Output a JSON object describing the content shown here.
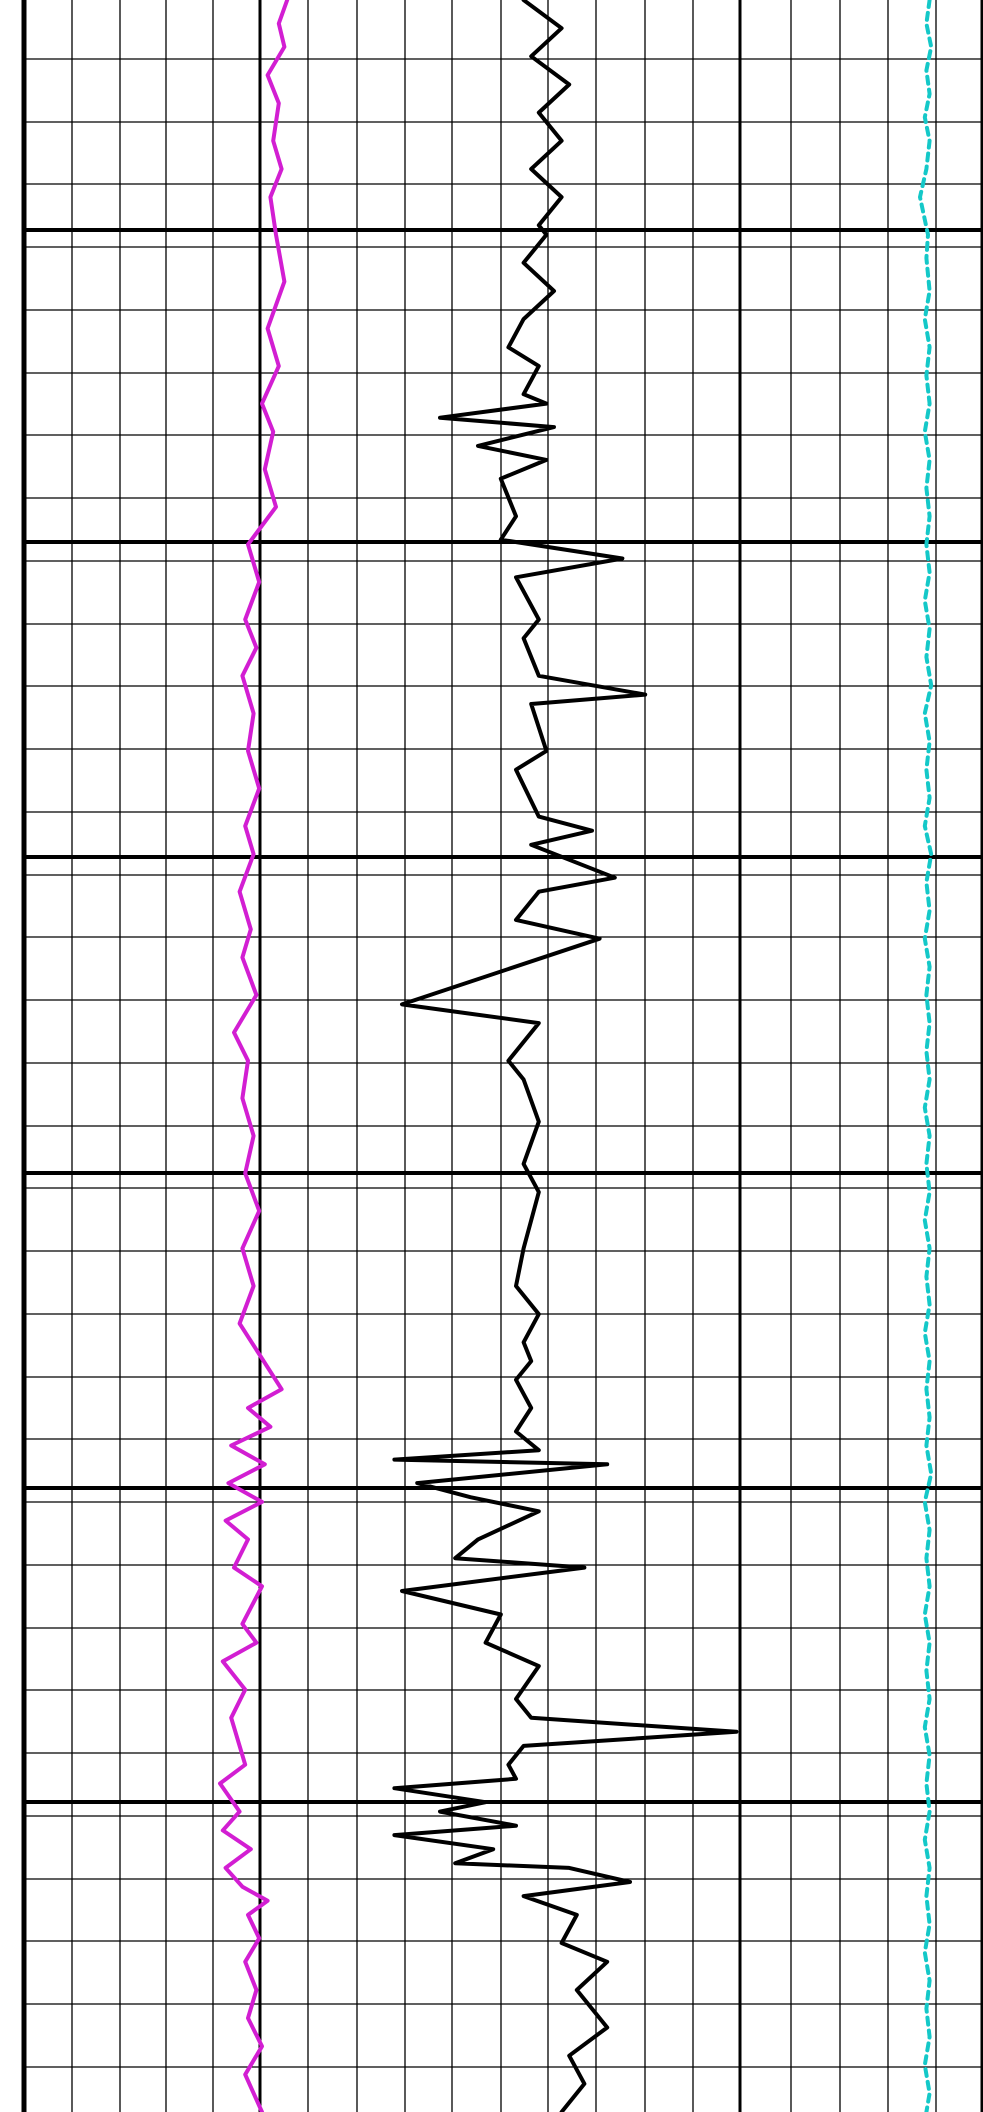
{
  "chart_data": {
    "type": "line",
    "title": "",
    "xlabel": "",
    "ylabel": "",
    "grid": true,
    "colors": {
      "background": "#ffffff",
      "grid": "#000000",
      "magenta": "#d21ed2",
      "black": "#000000",
      "cyan": "#14c8c8"
    },
    "series": [
      {
        "color": "magenta",
        "dashed": false,
        "x_range": [
          0,
          5
        ],
        "y_range": [
          0,
          45
        ],
        "points": [
          [
            4.9,
            0
          ],
          [
            4.6,
            0.5
          ],
          [
            4.8,
            1
          ],
          [
            4.2,
            1.6
          ],
          [
            4.6,
            2.2
          ],
          [
            4.4,
            3
          ],
          [
            4.7,
            3.6
          ],
          [
            4.3,
            4.2
          ],
          [
            4.5,
            5
          ],
          [
            4.8,
            6
          ],
          [
            4.2,
            7
          ],
          [
            4.6,
            7.8
          ],
          [
            4.0,
            8.6
          ],
          [
            4.4,
            9.2
          ],
          [
            4.1,
            10
          ],
          [
            4.5,
            10.8
          ],
          [
            3.5,
            11.6
          ],
          [
            3.9,
            12.4
          ],
          [
            3.4,
            13.2
          ],
          [
            3.8,
            13.8
          ],
          [
            3.3,
            14.4
          ],
          [
            3.7,
            15.2
          ],
          [
            3.5,
            16
          ],
          [
            3.9,
            16.8
          ],
          [
            3.4,
            17.6
          ],
          [
            3.7,
            18.2
          ],
          [
            3.2,
            19
          ],
          [
            3.6,
            19.8
          ],
          [
            3.3,
            20.4
          ],
          [
            3.8,
            21.2
          ],
          [
            3.0,
            22
          ],
          [
            3.5,
            22.6
          ],
          [
            3.3,
            23.4
          ],
          [
            3.7,
            24.2
          ],
          [
            3.4,
            25
          ],
          [
            3.9,
            25.8
          ],
          [
            3.3,
            26.6
          ],
          [
            3.7,
            27.4
          ],
          [
            3.2,
            28.2
          ],
          [
            4.7,
            29.6
          ],
          [
            3.5,
            30
          ],
          [
            4.3,
            30.4
          ],
          [
            2.9,
            30.8
          ],
          [
            4.1,
            31.2
          ],
          [
            2.8,
            31.6
          ],
          [
            4.0,
            32
          ],
          [
            2.7,
            32.4
          ],
          [
            3.5,
            32.8
          ],
          [
            3.0,
            33.4
          ],
          [
            4.0,
            33.8
          ],
          [
            3.3,
            34.6
          ],
          [
            3.8,
            35
          ],
          [
            2.6,
            35.4
          ],
          [
            3.4,
            36
          ],
          [
            2.9,
            36.6
          ],
          [
            3.4,
            37.6
          ],
          [
            2.5,
            38
          ],
          [
            3.2,
            38.6
          ],
          [
            2.6,
            39
          ],
          [
            3.6,
            39.4
          ],
          [
            2.7,
            39.8
          ],
          [
            3.3,
            40.2
          ],
          [
            4.2,
            40.5
          ],
          [
            3.5,
            40.8
          ],
          [
            3.9,
            41.3
          ],
          [
            3.4,
            41.8
          ],
          [
            3.8,
            42.4
          ],
          [
            3.5,
            43
          ],
          [
            4.0,
            43.6
          ],
          [
            3.4,
            44.2
          ],
          [
            4.0,
            45
          ]
        ]
      },
      {
        "color": "black",
        "dashed": false,
        "x_range": [
          0,
          5
        ],
        "y_range": [
          0,
          45
        ],
        "points": [
          [
            1.1,
            0
          ],
          [
            1.6,
            0.6
          ],
          [
            1.2,
            1.2
          ],
          [
            1.7,
            1.8
          ],
          [
            1.3,
            2.4
          ],
          [
            1.6,
            3
          ],
          [
            1.2,
            3.6
          ],
          [
            1.6,
            4.2
          ],
          [
            1.3,
            4.8
          ],
          [
            1.4,
            5
          ],
          [
            1.1,
            5.6
          ],
          [
            1.5,
            6.2
          ],
          [
            1.1,
            6.8
          ],
          [
            0.9,
            7.4
          ],
          [
            1.3,
            7.8
          ],
          [
            1.1,
            8.4
          ],
          [
            1.4,
            8.6
          ],
          [
            0,
            8.9
          ],
          [
            1.5,
            9.1
          ],
          [
            0.5,
            9.5
          ],
          [
            1.4,
            9.8
          ],
          [
            0.8,
            10.2
          ],
          [
            1.0,
            11
          ],
          [
            0.8,
            11.5
          ],
          [
            2.4,
            11.9
          ],
          [
            1.0,
            12.3
          ],
          [
            1.3,
            13.2
          ],
          [
            1.1,
            13.6
          ],
          [
            1.3,
            14.4
          ],
          [
            2.7,
            14.8
          ],
          [
            1.2,
            15
          ],
          [
            1.4,
            16
          ],
          [
            1.0,
            16.4
          ],
          [
            1.3,
            17.4
          ],
          [
            2.0,
            17.7
          ],
          [
            1.2,
            18
          ],
          [
            2.3,
            18.7
          ],
          [
            1.3,
            19
          ],
          [
            1.0,
            19.6
          ],
          [
            2.1,
            20
          ],
          [
            -0.5,
            21.4
          ],
          [
            1.3,
            21.8
          ],
          [
            0.9,
            22.6
          ],
          [
            1.1,
            23
          ],
          [
            1.3,
            23.9
          ],
          [
            1.1,
            24.8
          ],
          [
            1.3,
            25.4
          ],
          [
            1.1,
            26.6
          ],
          [
            1.0,
            27.4
          ],
          [
            1.3,
            28
          ],
          [
            1.1,
            28.6
          ],
          [
            1.2,
            29
          ],
          [
            1.0,
            29.4
          ],
          [
            1.2,
            30
          ],
          [
            1.0,
            30.5
          ],
          [
            1.3,
            30.9
          ],
          [
            -0.6,
            31.1
          ],
          [
            2.2,
            31.2
          ],
          [
            -0.3,
            31.6
          ],
          [
            0.4,
            31.9
          ],
          [
            1.3,
            32.2
          ],
          [
            0.5,
            32.8
          ],
          [
            0.2,
            33.2
          ],
          [
            1.9,
            33.4
          ],
          [
            -0.5,
            33.9
          ],
          [
            0.8,
            34.4
          ],
          [
            0.6,
            35
          ],
          [
            1.3,
            35.5
          ],
          [
            1.0,
            36.2
          ],
          [
            1.2,
            36.6
          ],
          [
            3.9,
            36.9
          ],
          [
            1.1,
            37.2
          ],
          [
            0.9,
            37.6
          ],
          [
            1.0,
            37.9
          ],
          [
            -0.6,
            38.1
          ],
          [
            0.6,
            38.4
          ],
          [
            0.0,
            38.6
          ],
          [
            1.0,
            38.9
          ],
          [
            -0.6,
            39.1
          ],
          [
            0.7,
            39.4
          ],
          [
            0.2,
            39.7
          ],
          [
            1.7,
            39.8
          ],
          [
            2.5,
            40.1
          ],
          [
            1.1,
            40.4
          ],
          [
            1.8,
            40.8
          ],
          [
            1.6,
            41.4
          ],
          [
            2.2,
            41.8
          ],
          [
            1.8,
            42.4
          ],
          [
            2.2,
            43.2
          ],
          [
            1.7,
            43.8
          ],
          [
            1.9,
            44.4
          ],
          [
            1.6,
            45
          ]
        ]
      },
      {
        "color": "cyan",
        "dashed": true,
        "x_range": [
          0,
          5
        ],
        "y_range": [
          0,
          45
        ],
        "points": [
          [
            3.1,
            0
          ],
          [
            2.9,
            0.5
          ],
          [
            3.2,
            1
          ],
          [
            2.9,
            1.5
          ],
          [
            3.1,
            2
          ],
          [
            2.8,
            2.5
          ],
          [
            3.1,
            3
          ],
          [
            2.9,
            3.6
          ],
          [
            2.5,
            4.2
          ],
          [
            3.0,
            5
          ],
          [
            2.9,
            5.5
          ],
          [
            3.1,
            6.2
          ],
          [
            2.8,
            6.8
          ],
          [
            3.1,
            7.4
          ],
          [
            2.9,
            8
          ],
          [
            3.1,
            8.6
          ],
          [
            2.8,
            9.2
          ],
          [
            3.1,
            9.8
          ],
          [
            2.9,
            10.4
          ],
          [
            3.1,
            11
          ],
          [
            2.9,
            11.6
          ],
          [
            3.1,
            12.2
          ],
          [
            2.8,
            12.8
          ],
          [
            3.1,
            13.4
          ],
          [
            2.9,
            14
          ],
          [
            3.2,
            14.6
          ],
          [
            2.8,
            15.2
          ],
          [
            3.1,
            15.8
          ],
          [
            2.9,
            16.4
          ],
          [
            3.1,
            17
          ],
          [
            2.8,
            17.6
          ],
          [
            3.2,
            18.2
          ],
          [
            2.9,
            18.8
          ],
          [
            3.1,
            19.4
          ],
          [
            2.8,
            20
          ],
          [
            3.1,
            20.6
          ],
          [
            2.9,
            21.2
          ],
          [
            3.1,
            21.8
          ],
          [
            2.9,
            22.4
          ],
          [
            3.1,
            23
          ],
          [
            2.8,
            23.6
          ],
          [
            3.1,
            24.2
          ],
          [
            2.9,
            24.8
          ],
          [
            3.1,
            25.4
          ],
          [
            2.8,
            26
          ],
          [
            3.1,
            26.6
          ],
          [
            2.9,
            27.2
          ],
          [
            3.1,
            27.8
          ],
          [
            2.8,
            28.4
          ],
          [
            3.1,
            29
          ],
          [
            2.9,
            29.6
          ],
          [
            3.1,
            30.2
          ],
          [
            2.9,
            30.8
          ],
          [
            3.2,
            31.4
          ],
          [
            2.8,
            32
          ],
          [
            3.1,
            32.6
          ],
          [
            2.9,
            33.2
          ],
          [
            3.1,
            33.8
          ],
          [
            2.8,
            34.4
          ],
          [
            3.1,
            35
          ],
          [
            2.9,
            35.6
          ],
          [
            3.1,
            36.2
          ],
          [
            2.8,
            36.8
          ],
          [
            3.1,
            37.4
          ],
          [
            2.9,
            38
          ],
          [
            3.1,
            38.6
          ],
          [
            2.8,
            39.2
          ],
          [
            3.1,
            39.8
          ],
          [
            2.9,
            40.4
          ],
          [
            3.1,
            41
          ],
          [
            2.8,
            41.6
          ],
          [
            3.1,
            42.2
          ],
          [
            2.9,
            42.8
          ],
          [
            3.1,
            43.4
          ],
          [
            2.8,
            44
          ],
          [
            3.1,
            44.6
          ],
          [
            2.9,
            45
          ]
        ]
      }
    ]
  }
}
